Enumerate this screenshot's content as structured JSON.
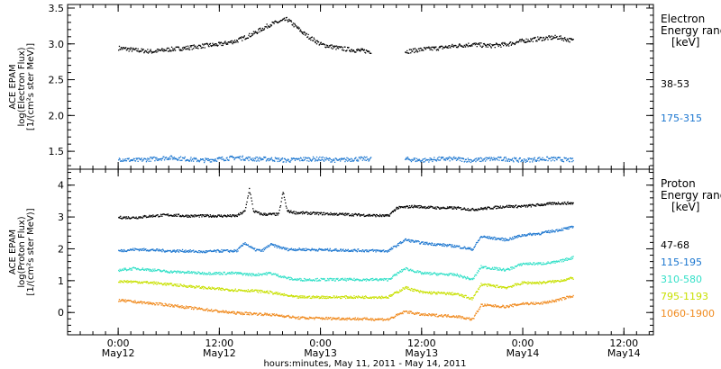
{
  "chart_data": [
    {
      "type": "scatter",
      "ylabel": [
        "ACE EPAM",
        "log(Electron Flux)",
        "[1/(cm²s ster MeV)]"
      ],
      "ylim": [
        1.25,
        3.55
      ],
      "yticks": [
        "1.5",
        "2.0",
        "2.5",
        "3.0",
        "3.5"
      ],
      "legend_title": [
        "Electron",
        "Energy ranges",
        "[keV]"
      ],
      "series": [
        {
          "name": "38-53",
          "color": "#000000",
          "x": [
            0,
            4,
            8,
            12,
            16,
            20,
            24,
            28,
            32,
            36,
            40,
            44,
            48,
            52,
            56,
            60,
            64,
            68,
            72,
            76,
            80,
            84,
            88,
            92,
            96,
            100,
            104,
            108
          ],
          "y": [
            2.95,
            2.92,
            2.9,
            2.93,
            2.95,
            2.98,
            3.0,
            3.05,
            3.15,
            3.28,
            3.35,
            3.15,
            3.0,
            2.95,
            2.92,
            2.9,
            null,
            2.9,
            2.93,
            2.95,
            2.98,
            3.0,
            2.98,
            3.0,
            3.05,
            3.08,
            3.1,
            3.05
          ]
        },
        {
          "name": "175-315",
          "color": "#1a75cf",
          "x": [
            0,
            4,
            8,
            12,
            16,
            20,
            24,
            28,
            32,
            36,
            40,
            44,
            48,
            52,
            56,
            60,
            64,
            68,
            72,
            76,
            80,
            84,
            88,
            92,
            96,
            100,
            104,
            108
          ],
          "y": [
            1.4,
            1.38,
            1.4,
            1.42,
            1.4,
            1.38,
            1.4,
            1.42,
            1.4,
            1.4,
            1.38,
            1.4,
            1.4,
            1.38,
            1.4,
            1.4,
            null,
            1.4,
            1.38,
            1.4,
            1.4,
            1.38,
            1.4,
            1.4,
            1.38,
            1.4,
            1.4,
            1.38
          ]
        }
      ]
    },
    {
      "type": "scatter",
      "ylabel": [
        "ACE EPAM",
        "log(Proton Flux)",
        "[1/(cm²s ster MeV)]"
      ],
      "ylim": [
        -0.7,
        4.5
      ],
      "yticks": [
        "0",
        "1",
        "2",
        "3",
        "4"
      ],
      "legend_title": [
        "Proton",
        "Energy ranges",
        "[keV]"
      ],
      "series": [
        {
          "name": "47-68",
          "color": "#000000",
          "x": [
            0,
            4,
            8,
            12,
            16,
            20,
            24,
            28,
            30,
            31,
            32,
            34,
            36,
            38,
            39,
            40,
            42,
            64,
            66,
            70,
            76,
            80,
            84,
            88,
            92,
            96,
            100,
            104,
            108
          ],
          "y": [
            3.0,
            3.0,
            3.05,
            3.08,
            3.05,
            3.05,
            3.05,
            3.05,
            3.2,
            3.9,
            3.2,
            3.1,
            3.1,
            3.1,
            3.8,
            3.2,
            3.15,
            3.05,
            3.3,
            3.35,
            3.3,
            3.3,
            3.25,
            3.3,
            3.35,
            3.35,
            3.4,
            3.45,
            3.45
          ]
        },
        {
          "name": "115-195",
          "color": "#1a75cf",
          "x": [
            0,
            4,
            8,
            12,
            16,
            20,
            24,
            28,
            30,
            32,
            34,
            36,
            40,
            42,
            64,
            68,
            72,
            80,
            84,
            86,
            92,
            96,
            100,
            104,
            108
          ],
          "y": [
            1.95,
            2.0,
            1.98,
            1.95,
            1.95,
            1.92,
            1.95,
            1.95,
            2.2,
            2.0,
            1.95,
            2.15,
            2.0,
            2.0,
            1.95,
            2.3,
            2.2,
            2.1,
            2.0,
            2.4,
            2.3,
            2.45,
            2.5,
            2.6,
            2.7
          ]
        },
        {
          "name": "310-580",
          "color": "#34e0c8",
          "x": [
            0,
            4,
            8,
            12,
            16,
            20,
            24,
            28,
            32,
            36,
            40,
            42,
            64,
            68,
            72,
            80,
            84,
            86,
            92,
            96,
            100,
            104,
            108
          ],
          "y": [
            1.35,
            1.4,
            1.35,
            1.3,
            1.28,
            1.25,
            1.25,
            1.25,
            1.2,
            1.25,
            1.1,
            1.05,
            1.05,
            1.4,
            1.25,
            1.2,
            1.05,
            1.45,
            1.35,
            1.55,
            1.55,
            1.6,
            1.75
          ]
        },
        {
          "name": "795-1193",
          "color": "#c8e000",
          "x": [
            0,
            4,
            8,
            12,
            16,
            20,
            24,
            28,
            32,
            36,
            40,
            42,
            64,
            68,
            72,
            80,
            84,
            86,
            92,
            96,
            100,
            104,
            108
          ],
          "y": [
            1.0,
            0.98,
            0.95,
            0.9,
            0.85,
            0.8,
            0.75,
            0.72,
            0.7,
            0.65,
            0.55,
            0.5,
            0.5,
            0.8,
            0.65,
            0.6,
            0.45,
            0.9,
            0.8,
            0.95,
            0.95,
            1.0,
            1.1
          ]
        },
        {
          "name": "1060-1900",
          "color": "#f08a1e",
          "x": [
            0,
            4,
            8,
            12,
            16,
            20,
            24,
            28,
            32,
            36,
            40,
            42,
            64,
            68,
            72,
            80,
            84,
            86,
            92,
            96,
            100,
            104,
            108
          ],
          "y": [
            0.4,
            0.35,
            0.3,
            0.25,
            0.18,
            0.12,
            0.05,
            0.0,
            -0.02,
            -0.05,
            -0.1,
            -0.15,
            -0.2,
            0.05,
            -0.05,
            -0.1,
            -0.2,
            0.25,
            0.2,
            0.3,
            0.3,
            0.4,
            0.55
          ]
        }
      ]
    }
  ],
  "x_axis": {
    "xlim": [
      -12,
      127
    ],
    "ticks": [
      {
        "x": 0,
        "time": "0:00",
        "date": "May12"
      },
      {
        "x": 24,
        "time": "12:00",
        "date": "May12"
      },
      {
        "x": 48,
        "time": "0:00",
        "date": "May13"
      },
      {
        "x": 72,
        "time": "12:00",
        "date": "May13"
      },
      {
        "x": 96,
        "time": "0:00",
        "date": "May14"
      },
      {
        "x": 120,
        "time": "12:00",
        "date": "May14"
      }
    ],
    "title": "hours:minutes, May 11, 2011 - May 14, 2011"
  }
}
